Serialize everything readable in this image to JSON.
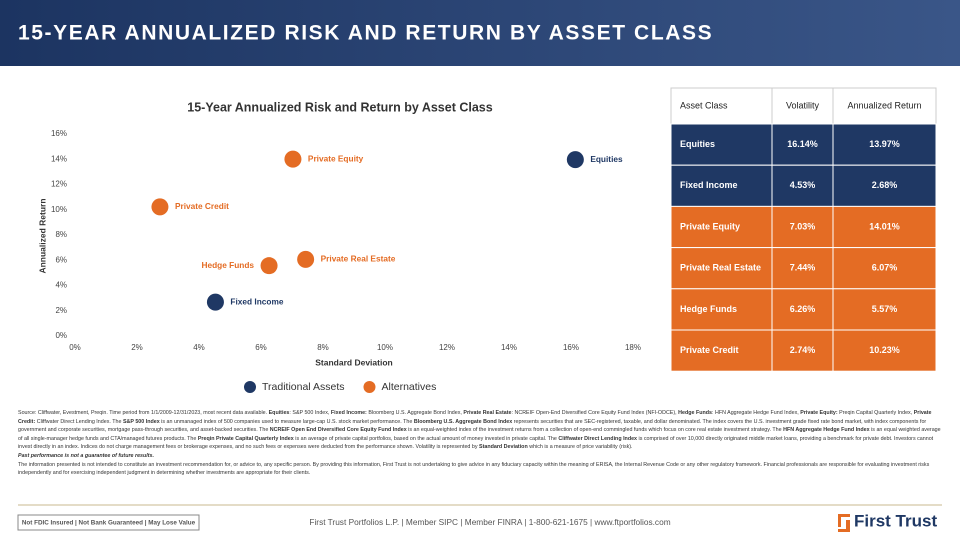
{
  "header": {
    "title": "15-YEAR ANNUALIZED RISK AND RETURN BY ASSET CLASS"
  },
  "chart_data": {
    "type": "scatter",
    "title": "15-Year Annualized Risk and Return by Asset Class",
    "x_label": "Standard Deviation",
    "y_label": "Annualized Return",
    "xlim": [
      0,
      18
    ],
    "ylim": [
      0,
      16
    ],
    "xticks": [
      {
        "value": 0,
        "label": "0%"
      },
      {
        "value": 2,
        "label": "2%"
      },
      {
        "value": 4,
        "label": "4%"
      },
      {
        "value": 6,
        "label": "6%"
      },
      {
        "value": 8,
        "label": "8%"
      },
      {
        "value": 10,
        "label": "10%"
      },
      {
        "value": 12,
        "label": "12%"
      },
      {
        "value": 14,
        "label": "14%"
      },
      {
        "value": 16,
        "label": "16%"
      },
      {
        "value": 18,
        "label": "18%"
      }
    ],
    "yticks": [
      {
        "value": 0,
        "label": "0%"
      },
      {
        "value": 2,
        "label": "2%"
      },
      {
        "value": 4,
        "label": "4%"
      },
      {
        "value": 6,
        "label": "6%"
      },
      {
        "value": 8,
        "label": "8%"
      },
      {
        "value": 10,
        "label": "10%"
      },
      {
        "value": 12,
        "label": "12%"
      },
      {
        "value": 14,
        "label": "14%"
      },
      {
        "value": 16,
        "label": "16%"
      }
    ],
    "series": [
      {
        "name": "Traditional Assets",
        "color": "#1f3864",
        "labels": [
          "Equities",
          "Fixed Income"
        ],
        "x": [
          16.14,
          4.53
        ],
        "values": [
          13.97,
          2.68
        ]
      },
      {
        "name": "Alternatives",
        "color": "#e46c24",
        "labels": [
          "Private Equity",
          "Private Real Estate",
          "Hedge Funds",
          "Private Credit"
        ],
        "x": [
          7.03,
          7.44,
          6.26,
          2.74
        ],
        "values": [
          14.01,
          6.07,
          5.57,
          10.23
        ]
      }
    ]
  },
  "table": {
    "header": [
      "Asset Class",
      "Volatility",
      "Annualized Return"
    ],
    "rows": [
      [
        "Equities",
        "16.14%",
        "13.97%"
      ],
      [
        "Fixed Income",
        "4.53%",
        "2.68%"
      ],
      [
        "Private Equity",
        "7.03%",
        "14.01%"
      ],
      [
        "Private Real Estate",
        "7.44%",
        "6.07%"
      ],
      [
        "Hedge Funds",
        "6.26%",
        "5.57%"
      ],
      [
        "Private Credit",
        "2.74%",
        "10.23%"
      ]
    ]
  },
  "source": [
    "Source: Cliffwater, Evestment, Preqin. Time period from 1/1/2009-12/31/2023, most recent data available. ",
    "Equities",
    ": S&P 500 Index, ",
    "Fixed Income:",
    " Bloomberg U.S. Aggregate Bond Index, ",
    "Private Real Estate",
    ": NCREIF Open-End Diversified Core Equity Fund Index (NFI-ODCE), ",
    "Hedge Funds",
    ": HFN Aggregate Hedge Fund Index, ",
    "Private Equity:",
    " Preqin Capital Quarterly Index, ",
    "Private Credit:",
    " Cliffwater Direct Lending Index. The ",
    "S&P 500 Index",
    " is an unmanaged index of 500 companies used to measure large-cap U.S. stock market performance. The ",
    "Bloomberg U.S. Aggregate Bond Index",
    " represents securities that are SEC-registered, taxable, and dollar denominated. The index covers the U.S. investment grade fixed rate bond market, with index components for government and corporate securities, mortgage pass-through securities, and asset-backed securities. The ",
    "NCREIF Open End Diversified Core Equity Fund Index",
    " is an equal-weighted index of the investment returns from a collection of open-end commingled funds which focus on core real estate investment strategy. The ",
    "HFN Aggregate Hedge Fund Index",
    " is an equal weighted average of all single-manager hedge funds and CTA/managed futures products. The ",
    "Preqin Private Capital Quarterly Index",
    " is an average of private capital portfolios, based on the actual amount of money invested in private capital. The ",
    "Cliffwater Direct Lending Index",
    " is comprised of over 10,000 directly originated middle market loans, providing a benchmark for private debt. Investors cannot invest directly in an index. Indices do not charge management fees or brokerage expenses, and no such fees or expenses were deducted from the performance shown. Volatility is represented by ",
    "Standard Deviation",
    " which is a measure of price variability (risk)."
  ],
  "past_performance": "Past performance is not a guarantee of future results.",
  "disclaimer": "The information presented is not intended to constitute an investment recommendation for, or advice to, any specific person. By providing this information, First Trust is not undertaking to give advice in any fiduciary capacity within the meaning of ERISA, the Internal Revenue Code or any other regulatory framework. Financial professionals are responsible for evaluating investment risks independently and for exercising independent judgment in determining whether investments are appropriate for their clients.",
  "footer": {
    "badge": "Not FDIC Insured | Not Bank Guaranteed | May Lose Value",
    "contact": "First Trust Portfolios L.P. | Member SIPC | Member FINRA | 1-800-621-1675 | www.ftportfolios.com",
    "logo": "First Trust"
  }
}
